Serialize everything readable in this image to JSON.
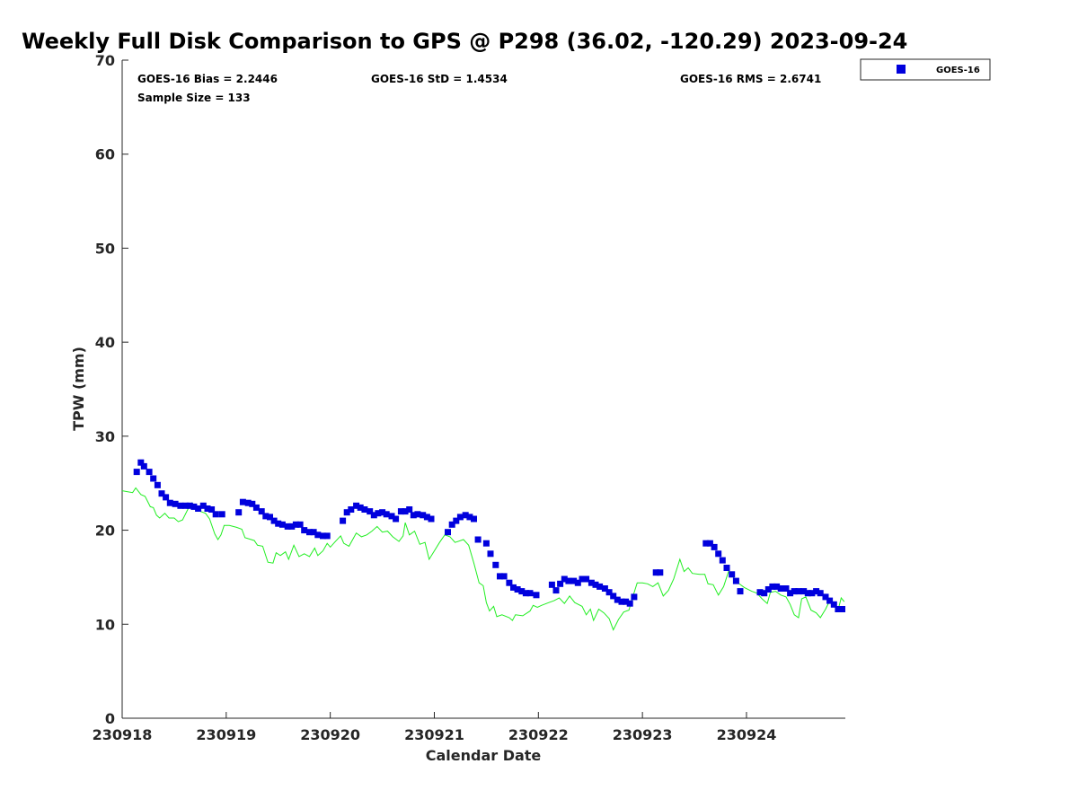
{
  "chart_data": {
    "type": "scatter",
    "title": "Weekly Full Disk Comparison to GPS @ P298 (36.02, -120.29) 2023-09-24",
    "xlabel": "Calendar Date",
    "ylabel": "TPW (mm)",
    "xlim": [
      0,
      6.95
    ],
    "ylim": [
      0,
      70
    ],
    "x_unit": "days since 230918",
    "yticks": [
      0,
      10,
      20,
      30,
      40,
      50,
      60,
      70
    ],
    "xticks": [
      {
        "x": 0,
        "label": "230918"
      },
      {
        "x": 1,
        "label": "230919"
      },
      {
        "x": 2,
        "label": "230920"
      },
      {
        "x": 3,
        "label": "230921"
      },
      {
        "x": 4,
        "label": "230922"
      },
      {
        "x": 5,
        "label": "230923"
      },
      {
        "x": 6,
        "label": "230924"
      }
    ],
    "grid": false,
    "legend_position": "outside-top-right",
    "stats": {
      "bias": "GOES-16 Bias = 2.2446",
      "std": "GOES-16 StD = 1.4534",
      "rms": "GOES-16 RMS = 2.6741",
      "sample_size": "Sample Size = 133"
    },
    "series": [
      {
        "name": "GOES-16",
        "kind": "scatter",
        "color": "#0000dd",
        "marker": "square",
        "points": [
          [
            0.14,
            26.2
          ],
          [
            0.18,
            27.2
          ],
          [
            0.21,
            26.8
          ],
          [
            0.26,
            26.2
          ],
          [
            0.3,
            25.5
          ],
          [
            0.34,
            24.8
          ],
          [
            0.38,
            23.9
          ],
          [
            0.42,
            23.5
          ],
          [
            0.46,
            22.9
          ],
          [
            0.51,
            22.8
          ],
          [
            0.56,
            22.6
          ],
          [
            0.61,
            22.6
          ],
          [
            0.65,
            22.6
          ],
          [
            0.69,
            22.5
          ],
          [
            0.73,
            22.3
          ],
          [
            0.78,
            22.6
          ],
          [
            0.82,
            22.3
          ],
          [
            0.86,
            22.2
          ],
          [
            0.9,
            21.7
          ],
          [
            0.96,
            21.7
          ],
          [
            1.12,
            21.9
          ],
          [
            1.16,
            23.0
          ],
          [
            1.21,
            22.9
          ],
          [
            1.25,
            22.8
          ],
          [
            1.29,
            22.4
          ],
          [
            1.34,
            22.0
          ],
          [
            1.38,
            21.5
          ],
          [
            1.42,
            21.4
          ],
          [
            1.46,
            21.0
          ],
          [
            1.5,
            20.7
          ],
          [
            1.54,
            20.6
          ],
          [
            1.59,
            20.4
          ],
          [
            1.63,
            20.4
          ],
          [
            1.67,
            20.6
          ],
          [
            1.71,
            20.6
          ],
          [
            1.75,
            20.0
          ],
          [
            1.8,
            19.8
          ],
          [
            1.84,
            19.8
          ],
          [
            1.88,
            19.5
          ],
          [
            1.93,
            19.4
          ],
          [
            1.97,
            19.4
          ],
          [
            2.12,
            21.0
          ],
          [
            2.16,
            21.9
          ],
          [
            2.2,
            22.2
          ],
          [
            2.25,
            22.6
          ],
          [
            2.29,
            22.4
          ],
          [
            2.33,
            22.2
          ],
          [
            2.38,
            22.0
          ],
          [
            2.42,
            21.6
          ],
          [
            2.46,
            21.8
          ],
          [
            2.5,
            21.9
          ],
          [
            2.54,
            21.7
          ],
          [
            2.59,
            21.5
          ],
          [
            2.63,
            21.2
          ],
          [
            2.68,
            22.0
          ],
          [
            2.72,
            22.0
          ],
          [
            2.76,
            22.2
          ],
          [
            2.8,
            21.6
          ],
          [
            2.84,
            21.7
          ],
          [
            2.89,
            21.6
          ],
          [
            2.93,
            21.4
          ],
          [
            2.97,
            21.2
          ],
          [
            3.13,
            19.8
          ],
          [
            3.17,
            20.6
          ],
          [
            3.21,
            21.0
          ],
          [
            3.25,
            21.4
          ],
          [
            3.3,
            21.6
          ],
          [
            3.34,
            21.4
          ],
          [
            3.38,
            21.2
          ],
          [
            3.42,
            19.0
          ],
          [
            3.5,
            18.6
          ],
          [
            3.54,
            17.5
          ],
          [
            3.59,
            16.3
          ],
          [
            3.63,
            15.1
          ],
          [
            3.67,
            15.1
          ],
          [
            3.72,
            14.4
          ],
          [
            3.76,
            13.9
          ],
          [
            3.8,
            13.7
          ],
          [
            3.84,
            13.5
          ],
          [
            3.88,
            13.3
          ],
          [
            3.92,
            13.3
          ],
          [
            3.98,
            13.1
          ],
          [
            4.13,
            14.2
          ],
          [
            4.17,
            13.6
          ],
          [
            4.21,
            14.3
          ],
          [
            4.25,
            14.8
          ],
          [
            4.29,
            14.6
          ],
          [
            4.34,
            14.6
          ],
          [
            4.38,
            14.4
          ],
          [
            4.42,
            14.8
          ],
          [
            4.46,
            14.8
          ],
          [
            4.51,
            14.4
          ],
          [
            4.55,
            14.2
          ],
          [
            4.59,
            14.0
          ],
          [
            4.64,
            13.8
          ],
          [
            4.68,
            13.4
          ],
          [
            4.72,
            13.0
          ],
          [
            4.76,
            12.6
          ],
          [
            4.8,
            12.4
          ],
          [
            4.84,
            12.4
          ],
          [
            4.88,
            12.2
          ],
          [
            4.92,
            12.9
          ],
          [
            5.13,
            15.5
          ],
          [
            5.17,
            15.5
          ],
          [
            5.61,
            18.6
          ],
          [
            5.65,
            18.6
          ],
          [
            5.69,
            18.2
          ],
          [
            5.73,
            17.5
          ],
          [
            5.77,
            16.8
          ],
          [
            5.81,
            16.0
          ],
          [
            5.86,
            15.3
          ],
          [
            5.9,
            14.6
          ],
          [
            5.94,
            13.5
          ],
          [
            6.13,
            13.4
          ],
          [
            6.17,
            13.3
          ],
          [
            6.21,
            13.7
          ],
          [
            6.25,
            14.0
          ],
          [
            6.29,
            14.0
          ],
          [
            6.33,
            13.8
          ],
          [
            6.38,
            13.8
          ],
          [
            6.42,
            13.3
          ],
          [
            6.46,
            13.5
          ],
          [
            6.5,
            13.5
          ],
          [
            6.55,
            13.5
          ],
          [
            6.59,
            13.3
          ],
          [
            6.63,
            13.3
          ],
          [
            6.67,
            13.5
          ],
          [
            6.71,
            13.3
          ],
          [
            6.76,
            12.9
          ],
          [
            6.8,
            12.5
          ],
          [
            6.84,
            12.1
          ],
          [
            6.88,
            11.6
          ],
          [
            6.92,
            11.6
          ]
        ]
      },
      {
        "kind": "line",
        "color": "#22ee22",
        "points": [
          [
            0.0,
            24.2
          ],
          [
            0.1,
            24.0
          ],
          [
            0.13,
            24.5
          ],
          [
            0.18,
            23.8
          ],
          [
            0.22,
            23.6
          ],
          [
            0.27,
            22.5
          ],
          [
            0.3,
            22.4
          ],
          [
            0.33,
            21.6
          ],
          [
            0.36,
            21.3
          ],
          [
            0.41,
            21.8
          ],
          [
            0.45,
            21.3
          ],
          [
            0.5,
            21.3
          ],
          [
            0.54,
            20.9
          ],
          [
            0.58,
            21.1
          ],
          [
            0.63,
            22.2
          ],
          [
            0.67,
            22.9
          ],
          [
            0.71,
            22.5
          ],
          [
            0.75,
            22.0
          ],
          [
            0.8,
            21.8
          ],
          [
            0.84,
            21.2
          ],
          [
            0.89,
            19.6
          ],
          [
            0.92,
            19.0
          ],
          [
            0.95,
            19.5
          ],
          [
            0.98,
            20.5
          ],
          [
            1.03,
            20.5
          ],
          [
            1.1,
            20.3
          ],
          [
            1.15,
            20.1
          ],
          [
            1.18,
            19.2
          ],
          [
            1.24,
            19.0
          ],
          [
            1.27,
            18.9
          ],
          [
            1.3,
            18.4
          ],
          [
            1.35,
            18.3
          ],
          [
            1.4,
            16.6
          ],
          [
            1.45,
            16.5
          ],
          [
            1.48,
            17.6
          ],
          [
            1.52,
            17.3
          ],
          [
            1.57,
            17.7
          ],
          [
            1.6,
            16.9
          ],
          [
            1.65,
            18.4
          ],
          [
            1.7,
            17.2
          ],
          [
            1.75,
            17.5
          ],
          [
            1.8,
            17.2
          ],
          [
            1.85,
            18.1
          ],
          [
            1.88,
            17.3
          ],
          [
            1.93,
            17.8
          ],
          [
            1.97,
            18.6
          ],
          [
            2.0,
            18.2
          ],
          [
            2.05,
            18.8
          ],
          [
            2.1,
            19.4
          ],
          [
            2.13,
            18.6
          ],
          [
            2.18,
            18.3
          ],
          [
            2.25,
            19.7
          ],
          [
            2.3,
            19.3
          ],
          [
            2.35,
            19.5
          ],
          [
            2.4,
            19.9
          ],
          [
            2.45,
            20.4
          ],
          [
            2.5,
            19.8
          ],
          [
            2.55,
            19.9
          ],
          [
            2.6,
            19.3
          ],
          [
            2.66,
            18.8
          ],
          [
            2.7,
            19.4
          ],
          [
            2.72,
            20.8
          ],
          [
            2.76,
            19.5
          ],
          [
            2.81,
            19.9
          ],
          [
            2.86,
            18.5
          ],
          [
            2.91,
            18.7
          ],
          [
            2.95,
            16.9
          ],
          [
            3.0,
            17.8
          ],
          [
            3.05,
            18.7
          ],
          [
            3.1,
            19.5
          ],
          [
            3.15,
            19.3
          ],
          [
            3.2,
            18.7
          ],
          [
            3.28,
            19.0
          ],
          [
            3.33,
            18.4
          ],
          [
            3.38,
            16.5
          ],
          [
            3.43,
            14.4
          ],
          [
            3.47,
            14.1
          ],
          [
            3.5,
            12.3
          ],
          [
            3.53,
            11.4
          ],
          [
            3.57,
            11.9
          ],
          [
            3.6,
            10.8
          ],
          [
            3.65,
            11.0
          ],
          [
            3.72,
            10.7
          ],
          [
            3.75,
            10.4
          ],
          [
            3.78,
            11.0
          ],
          [
            3.85,
            10.9
          ],
          [
            3.92,
            11.4
          ],
          [
            3.95,
            12.0
          ],
          [
            3.99,
            11.8
          ],
          [
            4.03,
            12.0
          ],
          [
            4.1,
            12.3
          ],
          [
            4.15,
            12.5
          ],
          [
            4.2,
            12.8
          ],
          [
            4.25,
            12.2
          ],
          [
            4.3,
            13.0
          ],
          [
            4.35,
            12.3
          ],
          [
            4.42,
            11.9
          ],
          [
            4.46,
            11.0
          ],
          [
            4.5,
            11.6
          ],
          [
            4.53,
            10.4
          ],
          [
            4.58,
            11.6
          ],
          [
            4.63,
            11.2
          ],
          [
            4.68,
            10.6
          ],
          [
            4.72,
            9.4
          ],
          [
            4.77,
            10.5
          ],
          [
            4.82,
            11.3
          ],
          [
            4.87,
            11.5
          ],
          [
            4.91,
            13.0
          ],
          [
            4.95,
            14.4
          ],
          [
            5.0,
            14.4
          ],
          [
            5.05,
            14.3
          ],
          [
            5.1,
            14.0
          ],
          [
            5.15,
            14.4
          ],
          [
            5.2,
            13.0
          ],
          [
            5.25,
            13.6
          ],
          [
            5.3,
            14.8
          ],
          [
            5.36,
            16.9
          ],
          [
            5.4,
            15.6
          ],
          [
            5.44,
            16.0
          ],
          [
            5.48,
            15.4
          ],
          [
            5.55,
            15.3
          ],
          [
            5.6,
            15.3
          ],
          [
            5.63,
            14.3
          ],
          [
            5.68,
            14.2
          ],
          [
            5.73,
            13.1
          ],
          [
            5.78,
            14.0
          ],
          [
            5.83,
            15.7
          ],
          [
            5.88,
            14.9
          ],
          [
            5.93,
            14.3
          ],
          [
            5.98,
            13.9
          ],
          [
            6.05,
            13.5
          ],
          [
            6.1,
            13.3
          ],
          [
            6.15,
            12.7
          ],
          [
            6.2,
            12.2
          ],
          [
            6.23,
            13.4
          ],
          [
            6.28,
            13.5
          ],
          [
            6.33,
            13.1
          ],
          [
            6.38,
            12.9
          ],
          [
            6.42,
            12.1
          ],
          [
            6.46,
            11.0
          ],
          [
            6.5,
            10.7
          ],
          [
            6.53,
            12.7
          ],
          [
            6.57,
            12.9
          ],
          [
            6.62,
            11.5
          ],
          [
            6.67,
            11.2
          ],
          [
            6.71,
            10.7
          ],
          [
            6.76,
            11.6
          ],
          [
            6.8,
            12.5
          ],
          [
            6.84,
            12.1
          ],
          [
            6.88,
            11.5
          ],
          [
            6.91,
            12.8
          ],
          [
            6.94,
            12.4
          ]
        ]
      }
    ]
  }
}
